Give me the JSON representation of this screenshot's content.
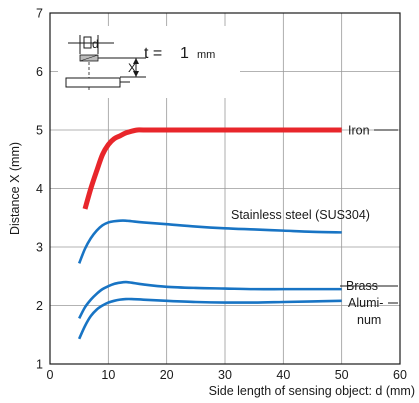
{
  "chart_data": {
    "type": "line",
    "xlabel": "Side length of sensing object: d (mm)",
    "ylabel": "Distance X (mm)",
    "xlim": [
      0,
      60
    ],
    "ylim": [
      1,
      7
    ],
    "xticks": [
      0,
      10,
      20,
      30,
      40,
      50,
      60
    ],
    "yticks": [
      1,
      2,
      3,
      4,
      5,
      6,
      7
    ],
    "grid": true,
    "series": [
      {
        "name": "Iron",
        "color": "#e8262b",
        "x": [
          6,
          7,
          8,
          9,
          10,
          11,
          12,
          13,
          14,
          15,
          16,
          20,
          30,
          40,
          50
        ],
        "y": [
          3.65,
          4.0,
          4.3,
          4.58,
          4.75,
          4.85,
          4.9,
          4.95,
          4.98,
          5.0,
          5.0,
          5.0,
          5.0,
          5.0,
          5.0
        ]
      },
      {
        "name": "Stainless steel (SUS304)",
        "color": "#1874c4",
        "x": [
          5,
          6,
          7,
          8,
          9,
          10,
          11,
          12,
          13,
          14,
          16,
          20,
          25,
          30,
          35,
          40,
          45,
          50
        ],
        "y": [
          2.72,
          2.97,
          3.15,
          3.28,
          3.37,
          3.42,
          3.44,
          3.45,
          3.45,
          3.44,
          3.42,
          3.39,
          3.35,
          3.32,
          3.3,
          3.28,
          3.26,
          3.25
        ]
      },
      {
        "name": "Brass",
        "color": "#1874c4",
        "x": [
          5,
          6,
          7,
          8,
          9,
          10,
          11,
          12,
          13,
          14,
          16,
          20,
          25,
          30,
          35,
          40,
          45,
          50
        ],
        "y": [
          1.78,
          1.97,
          2.1,
          2.2,
          2.28,
          2.33,
          2.37,
          2.39,
          2.4,
          2.39,
          2.36,
          2.32,
          2.3,
          2.29,
          2.28,
          2.28,
          2.28,
          2.28
        ]
      },
      {
        "name": "Alumi-num",
        "color": "#1874c4",
        "x": [
          5,
          6,
          7,
          8,
          9,
          10,
          11,
          12,
          13,
          14,
          16,
          20,
          25,
          30,
          35,
          40,
          45,
          50
        ],
        "y": [
          1.43,
          1.65,
          1.82,
          1.93,
          2.0,
          2.05,
          2.08,
          2.1,
          2.11,
          2.11,
          2.1,
          2.08,
          2.06,
          2.05,
          2.05,
          2.06,
          2.07,
          2.08
        ]
      }
    ],
    "series_labels": [
      {
        "text": "Iron",
        "series": 0
      },
      {
        "text": "Stainless steel (SUS304)",
        "series": 1
      },
      {
        "text": "Brass",
        "series": 2
      },
      {
        "text": "Alumi-",
        "series": 3
      },
      {
        "text": "num",
        "series": 3
      }
    ],
    "inset": {
      "thickness_label": "t =",
      "thickness_value": "1",
      "thickness_unit": "mm",
      "d_label": "d",
      "x_label": "X"
    }
  }
}
